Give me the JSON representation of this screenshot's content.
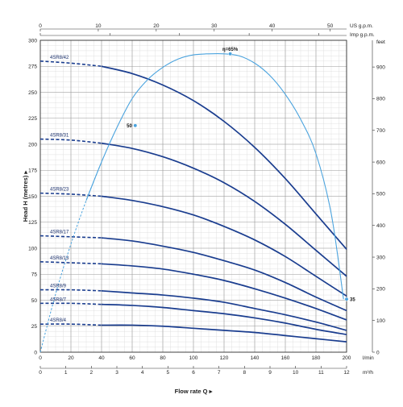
{
  "chart_data": {
    "type": "line",
    "title": "",
    "xlabel": "Flow rate Q",
    "ylabel": "Head H (metres)",
    "xlim": [
      0,
      200
    ],
    "ylim": [
      0,
      300
    ],
    "x_unit": "l/min",
    "x2_unit": "m³/h",
    "top_unit1": "US g.p.m.",
    "top_unit2": "Imp g.p.m.",
    "right_axis": "feet",
    "x_ticks": [
      0,
      20,
      40,
      60,
      80,
      100,
      120,
      140,
      160,
      180,
      200
    ],
    "x_ticks_m3h": [
      0,
      1,
      2,
      3,
      4,
      5,
      6,
      7,
      8,
      9,
      10,
      11,
      12
    ],
    "y_ticks": [
      0,
      25,
      50,
      75,
      100,
      125,
      150,
      175,
      200,
      225,
      250,
      275,
      300
    ],
    "top_ticks_us": [
      0,
      10,
      20,
      30,
      40,
      50
    ],
    "right_ticks_feet": [
      0,
      100,
      200,
      300,
      400,
      500,
      600,
      700,
      800,
      900
    ],
    "grid": true,
    "series": [
      {
        "name": "4SR8/42",
        "shutoff": 280,
        "x": [
          0,
          20,
          40,
          60,
          80,
          100,
          120,
          140,
          160,
          180,
          200
        ],
        "y": [
          280,
          278,
          275,
          268,
          257,
          242,
          222,
          197,
          167,
          133,
          99
        ]
      },
      {
        "name": "4SR8/31",
        "shutoff": 205,
        "x": [
          0,
          20,
          40,
          60,
          80,
          100,
          120,
          140,
          160,
          180,
          200
        ],
        "y": [
          205,
          204,
          201,
          196,
          188,
          177,
          163,
          145,
          123,
          98,
          73
        ]
      },
      {
        "name": "4SR8/23",
        "shutoff": 153,
        "x": [
          0,
          20,
          40,
          60,
          80,
          100,
          120,
          140,
          160,
          180,
          200
        ],
        "y": [
          153,
          152,
          150,
          146,
          140,
          132,
          121,
          108,
          92,
          73,
          54
        ]
      },
      {
        "name": "4SR8/17",
        "shutoff": 112,
        "x": [
          0,
          20,
          40,
          60,
          80,
          100,
          120,
          140,
          160,
          180,
          200
        ],
        "y": [
          112,
          111,
          110,
          107,
          102,
          96,
          88,
          79,
          67,
          53,
          40
        ]
      },
      {
        "name": "4SR8/13",
        "shutoff": 87,
        "x": [
          0,
          20,
          40,
          60,
          80,
          100,
          120,
          140,
          160,
          180,
          200
        ],
        "y": [
          87,
          86,
          85,
          83,
          80,
          75,
          69,
          61,
          52,
          42,
          31
        ]
      },
      {
        "name": "4SR8/9",
        "shutoff": 60,
        "x": [
          0,
          20,
          40,
          60,
          80,
          100,
          120,
          140,
          160,
          180,
          200
        ],
        "y": [
          60,
          60,
          59,
          57,
          55,
          52,
          48,
          42,
          36,
          29,
          21
        ]
      },
      {
        "name": "4SR8/7",
        "shutoff": 47,
        "x": [
          0,
          20,
          40,
          60,
          80,
          100,
          120,
          140,
          160,
          180,
          200
        ],
        "y": [
          47,
          47,
          46,
          45,
          43,
          40,
          37,
          33,
          28,
          22,
          17
        ]
      },
      {
        "name": "4SR8/4",
        "shutoff": 27,
        "x": [
          0,
          20,
          40,
          60,
          80,
          100,
          120,
          140,
          160,
          180,
          200
        ],
        "y": [
          27,
          27,
          26,
          26,
          25,
          23,
          21,
          19,
          16,
          13,
          10
        ]
      }
    ],
    "efficiency_curve": {
      "x": [
        0,
        10,
        20,
        30,
        40,
        50,
        60,
        70,
        80,
        90,
        100,
        110,
        120,
        130,
        140,
        150,
        160,
        170,
        180,
        190,
        198
      ],
      "y": [
        0,
        56,
        104,
        146,
        183,
        216,
        244,
        262,
        274,
        282,
        286,
        287,
        287,
        285,
        278,
        266,
        248,
        224,
        191,
        133,
        51
      ],
      "dashed_until_x": 35
    },
    "efficiency_points": [
      {
        "label": "η=65%",
        "x": 124,
        "y": 287
      },
      {
        "label": "50",
        "x": 62,
        "y": 218
      },
      {
        "label": "35",
        "x": 200,
        "y": 51
      }
    ]
  },
  "colors": {
    "pump_curve": "#1a3d8f",
    "efficiency_curve": "#4aa3de",
    "grid_major": "#9a9a9a",
    "grid_minor": "#d9d9d9",
    "axis": "#333333"
  }
}
